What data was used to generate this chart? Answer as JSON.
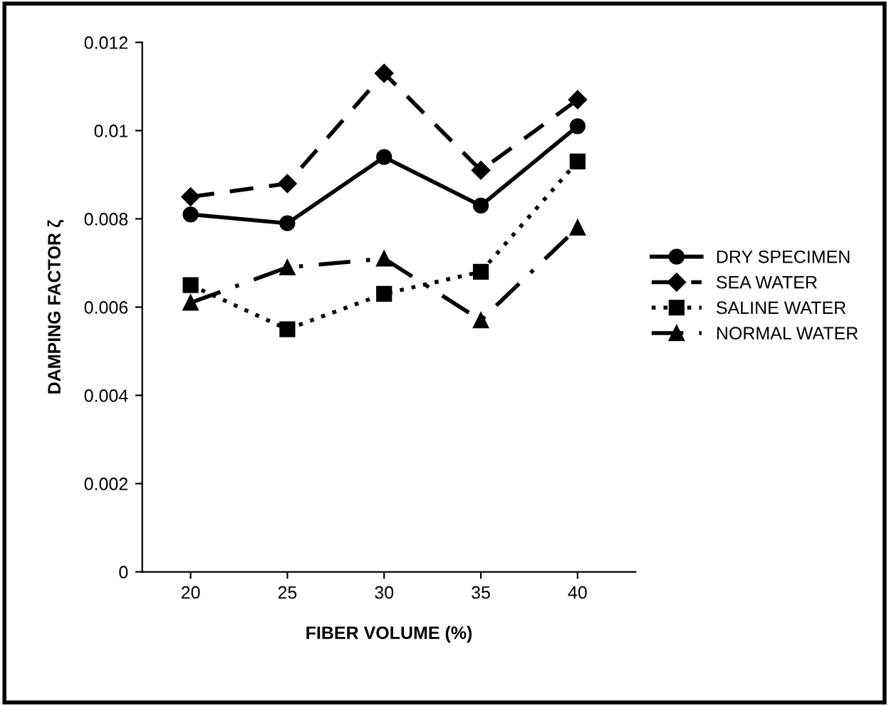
{
  "chart_data": {
    "type": "line",
    "xlabel": "FIBER VOLUME (%)",
    "ylabel": "DAMPING FACTOR ζ",
    "categories": [
      "20",
      "25",
      "30",
      "35",
      "40"
    ],
    "series": [
      {
        "name": "DRY SPECIMEN",
        "color": "#000000",
        "marker": "circle",
        "line_style": "solid",
        "values": [
          0.0081,
          0.0079,
          0.0094,
          0.0083,
          0.0101
        ]
      },
      {
        "name": "SEA WATER",
        "color": "#000000",
        "marker": "diamond",
        "line_style": "dashed",
        "values": [
          0.0085,
          0.0088,
          0.0113,
          0.0091,
          0.0107
        ]
      },
      {
        "name": "SALINE WATER",
        "color": "#000000",
        "marker": "square",
        "line_style": "dotted",
        "values": [
          0.0065,
          0.0055,
          0.0063,
          0.0068,
          0.0093
        ]
      },
      {
        "name": "NORMAL WATER",
        "color": "#000000",
        "marker": "triangle",
        "line_style": "dashdot",
        "values": [
          0.0061,
          0.0069,
          0.0071,
          0.0057,
          0.0078
        ]
      }
    ],
    "ylim": [
      0,
      0.012
    ],
    "yticks": [
      0,
      0.002,
      0.004,
      0.006,
      0.008,
      0.01,
      0.012
    ],
    "grid": false,
    "legend": "right"
  }
}
